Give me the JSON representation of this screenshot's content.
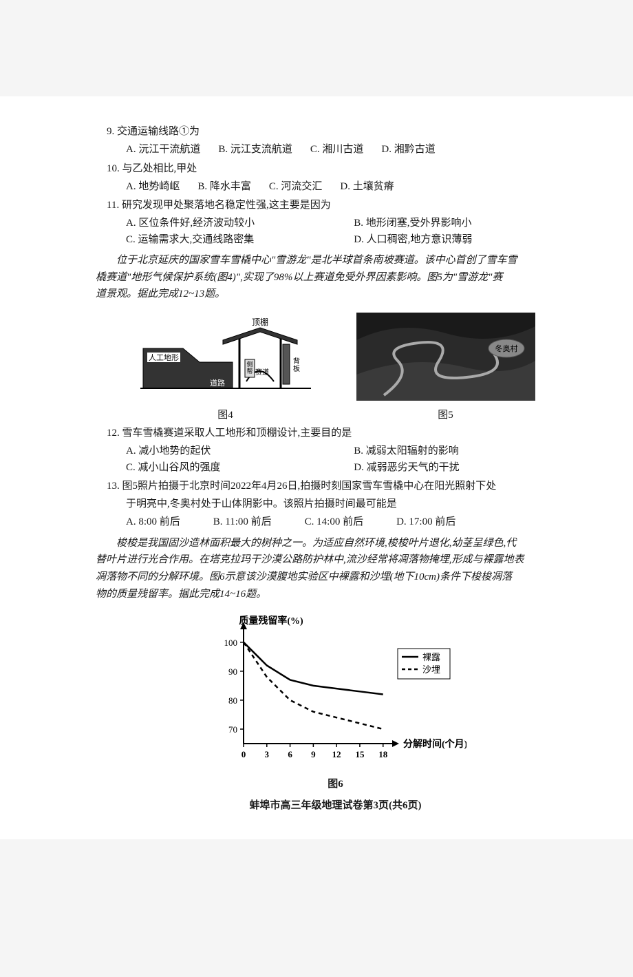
{
  "q9": {
    "stem": "9. 交通运输线路①为",
    "opts": [
      "A. 沅江干流航道",
      "B. 沅江支流航道",
      "C. 湘川古道",
      "D. 湘黔古道"
    ]
  },
  "q10": {
    "stem": "10. 与乙处相比,甲处",
    "opts": [
      "A. 地势崎岖",
      "B. 降水丰富",
      "C. 河流交汇",
      "D. 土壤贫瘠"
    ]
  },
  "q11": {
    "stem": "11. 研究发现甲处聚落地名稳定性强,这主要是因为",
    "opts": [
      "A. 区位条件好,经济波动较小",
      "B. 地形闭塞,受外界影响小",
      "C. 运输需求大,交通线路密集",
      "D. 人口稠密,地方意识薄弱"
    ]
  },
  "passage1_l1": "位于北京延庆的国家雪车雪橇中心\"雪游龙\"是北半球首条南坡赛道。该中心首创了雪车雪",
  "passage1_l2": "橇赛道\"地形气候保护系统(图4)\",实现了98%以上赛道免受外界因素影响。图5为\"雪游龙\"赛",
  "passage1_l3": "道景观。据此完成12~13题。",
  "fig4": {
    "caption": "图4",
    "labels": {
      "roof": "顶棚",
      "terrain": "人工地形",
      "road": "道路",
      "track": "赛道",
      "back": "背板",
      "side": "侧帮"
    }
  },
  "fig5": {
    "caption": "图5",
    "label": "冬奥村"
  },
  "q12": {
    "stem": "12. 雪车雪橇赛道采取人工地形和顶棚设计,主要目的是",
    "opts": [
      "A. 减小地势的起伏",
      "B. 减弱太阳辐射的影响",
      "C. 减小山谷风的强度",
      "D. 减弱恶劣天气的干扰"
    ]
  },
  "q13": {
    "stem": "13. 图5照片拍摄于北京时间2022年4月26日,拍摄时刻国家雪车雪橇中心在阳光照射下处",
    "stem2": "于明亮中,冬奥村处于山体阴影中。该照片拍摄时间最可能是",
    "opts": [
      "A. 8:00 前后",
      "B. 11:00 前后",
      "C. 14:00 前后",
      "D. 17:00 前后"
    ]
  },
  "passage2_l1": "梭梭是我国固沙造林面积最大的树种之一。为适应自然环境,梭梭叶片退化,幼茎呈绿色,代",
  "passage2_l2": "替叶片进行光合作用。在塔克拉玛干沙漠公路防护林中,流沙经常将凋落物掩埋,形成与裸露地表",
  "passage2_l3": "凋落物不同的分解环境。图6示意该沙漠腹地实验区中裸露和沙埋(地下10cm)条件下梭梭凋落",
  "passage2_l4": "物的质量残留率。据此完成14~16题。",
  "chart": {
    "caption": "图6",
    "ylabel": "质量残留率(%)",
    "xlabel": "分解时间(个月)",
    "xticks": [
      0,
      3,
      6,
      9,
      12,
      15,
      18
    ],
    "yticks": [
      70,
      80,
      90,
      100
    ],
    "ylim": [
      65,
      104
    ],
    "xlim": [
      0,
      19
    ],
    "legend": [
      "裸露",
      "沙埋"
    ],
    "series1": {
      "name": "裸露",
      "style": "solid",
      "color": "#000000",
      "points": [
        [
          0,
          100
        ],
        [
          3,
          92
        ],
        [
          6,
          87
        ],
        [
          9,
          85
        ],
        [
          12,
          84
        ],
        [
          15,
          83
        ],
        [
          18,
          82
        ]
      ]
    },
    "series2": {
      "name": "沙埋",
      "style": "dashed",
      "color": "#000000",
      "points": [
        [
          0,
          100
        ],
        [
          3,
          88
        ],
        [
          6,
          80
        ],
        [
          9,
          76
        ],
        [
          12,
          74
        ],
        [
          15,
          72
        ],
        [
          18,
          70
        ]
      ]
    },
    "axis_color": "#000000",
    "tick_fontsize": 13,
    "label_fontsize": 14
  },
  "footer": "蚌埠市高三年级地理试卷第3页(共6页)"
}
